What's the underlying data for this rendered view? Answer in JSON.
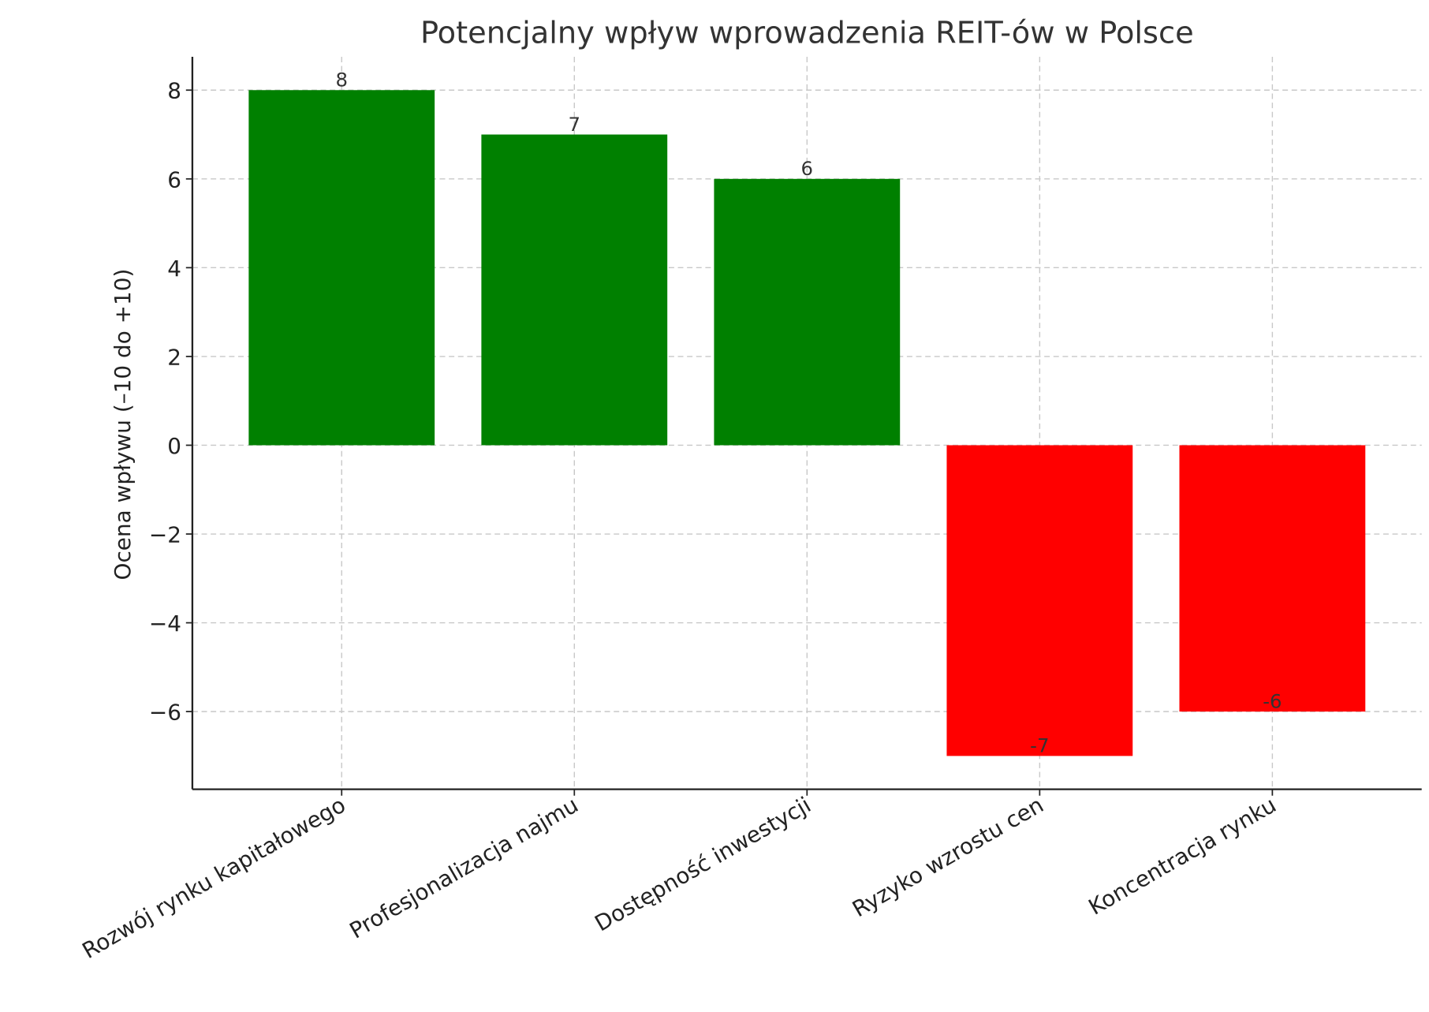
{
  "chart_data": {
    "type": "bar",
    "title": "Potencjalny wpływ wprowadzenia REIT-ów w Polsce",
    "xlabel": "",
    "ylabel": "Ocena wpływu (–10 do +10)",
    "categories": [
      "Rozwój rynku kapitałowego",
      "Profesjonalizacja najmu",
      "Dostępność inwestycji",
      "Ryzyko wzrostu cen",
      "Koncentracja rynku"
    ],
    "values": [
      8,
      7,
      6,
      -7,
      -6
    ],
    "data_labels": [
      "8",
      "7",
      "6",
      "-7",
      "-6"
    ],
    "colors": [
      "#008000",
      "#008000",
      "#008000",
      "#ff0000",
      "#ff0000"
    ],
    "ylim": [
      -7.75,
      8.75
    ],
    "yticks": [
      -6,
      -4,
      -2,
      0,
      2,
      4,
      6,
      8
    ],
    "ytick_labels": [
      "−6",
      "−4",
      "−2",
      "0",
      "2",
      "4",
      "6",
      "8"
    ],
    "grid": true,
    "legend": "none"
  }
}
